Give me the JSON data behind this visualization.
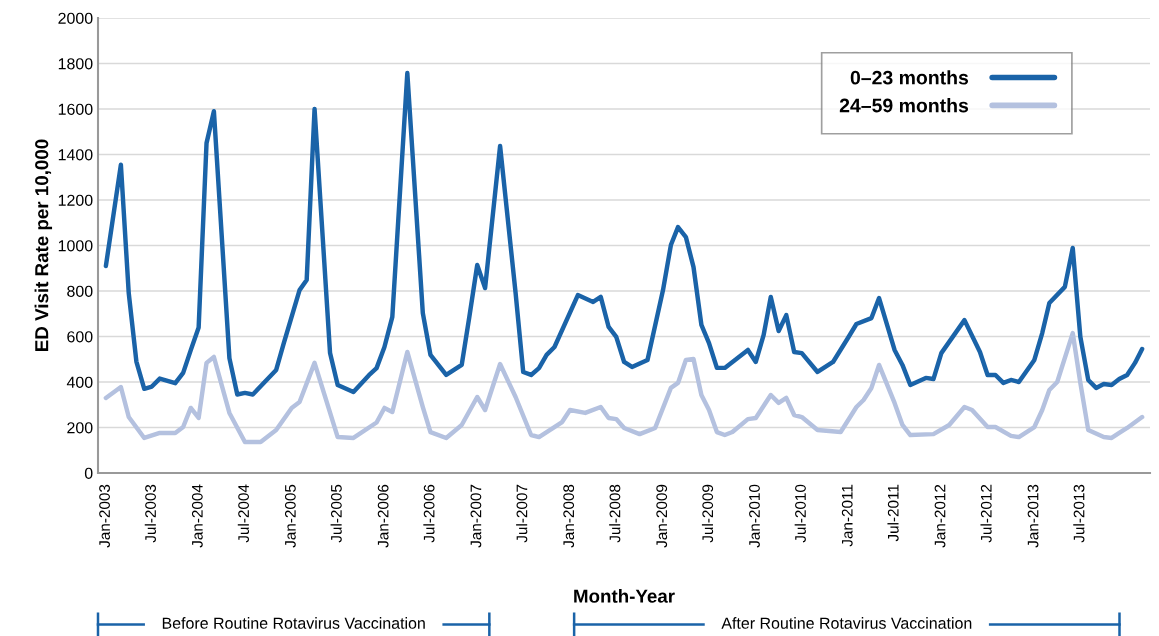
{
  "chart_data": {
    "type": "line",
    "xlabel": "Month-Year",
    "ylabel": "ED Visit Rate per 10,000",
    "ylim": [
      0,
      2000
    ],
    "yticks": [
      0,
      200,
      400,
      600,
      800,
      1000,
      1200,
      1400,
      1600,
      1800,
      2000
    ],
    "xlim": [
      "2002-12",
      "2014-04"
    ],
    "xticks": [
      {
        "value": "2003-01",
        "label": "Jan-2003"
      },
      {
        "value": "2003-07",
        "label": "Jul-2003"
      },
      {
        "value": "2004-01",
        "label": "Jan-2004"
      },
      {
        "value": "2004-07",
        "label": "Jul-2004"
      },
      {
        "value": "2005-01",
        "label": "Jan-2005"
      },
      {
        "value": "2005-07",
        "label": "Jul-2005"
      },
      {
        "value": "2006-01",
        "label": "Jan-2006"
      },
      {
        "value": "2006-07",
        "label": "Jul-2006"
      },
      {
        "value": "2007-01",
        "label": "Jan-2007"
      },
      {
        "value": "2007-07",
        "label": "Jul-2007"
      },
      {
        "value": "2008-01",
        "label": "Jan-2008"
      },
      {
        "value": "2008-07",
        "label": "Jul-2008"
      },
      {
        "value": "2009-01",
        "label": "Jan-2009"
      },
      {
        "value": "2009-07",
        "label": "Jul-2009"
      },
      {
        "value": "2010-01",
        "label": "Jan-2010"
      },
      {
        "value": "2010-07",
        "label": "Jul-2010"
      },
      {
        "value": "2011-01",
        "label": "Jan-2011"
      },
      {
        "value": "2011-07",
        "label": "Jul-2011"
      },
      {
        "value": "2012-01",
        "label": "Jan-2012"
      },
      {
        "value": "2012-07",
        "label": "Jul-2012"
      },
      {
        "value": "2013-01",
        "label": "Jan-2013"
      },
      {
        "value": "2013-07",
        "label": "Jul-2013"
      }
    ],
    "grid": "y",
    "legend": "top right",
    "marker": "none",
    "line_style": "solid",
    "annotations": [
      "Before Routine Rotavirus Vaccination",
      "After Routine Rotavirus Vaccination"
    ],
    "series": [
      {
        "name": "0–23 months",
        "color": "#1a63a8",
        "x": [
          "2003-01",
          "2003-03",
          "2003-04",
          "2003-05",
          "2003-06",
          "2003-07",
          "2003-08",
          "2003-10",
          "2003-11",
          "2003-12",
          "2004-01",
          "2004-02",
          "2004-03",
          "2004-05",
          "2004-06",
          "2004-07",
          "2004-08",
          "2004-11",
          "2004-12",
          "2005-02",
          "2005-03",
          "2005-04",
          "2005-06",
          "2005-07",
          "2005-09",
          "2005-11",
          "2005-12",
          "2006-01",
          "2006-02",
          "2006-04",
          "2006-06",
          "2006-07",
          "2006-09",
          "2006-11",
          "2006-12",
          "2007-01",
          "2007-02",
          "2007-04",
          "2007-06",
          "2007-07",
          "2007-08",
          "2007-09",
          "2007-10",
          "2007-11",
          "2008-02",
          "2008-04",
          "2008-05",
          "2008-06",
          "2008-07",
          "2008-08",
          "2008-09",
          "2008-11",
          "2009-01",
          "2009-02",
          "2009-03",
          "2009-04",
          "2009-05",
          "2009-06",
          "2009-07",
          "2009-08",
          "2009-09",
          "2009-12",
          "2010-01",
          "2010-02",
          "2010-03",
          "2010-04",
          "2010-05",
          "2010-06",
          "2010-07",
          "2010-09",
          "2010-11",
          "2011-01",
          "2011-02",
          "2011-04",
          "2011-05",
          "2011-07",
          "2011-08",
          "2011-09",
          "2011-11",
          "2011-12",
          "2012-01",
          "2012-04",
          "2012-06",
          "2012-07",
          "2012-08",
          "2012-09",
          "2012-10",
          "2012-11",
          "2013-01",
          "2013-02",
          "2013-03",
          "2013-05",
          "2013-06",
          "2013-07",
          "2013-08",
          "2013-09",
          "2013-10",
          "2013-11",
          "2013-12",
          "2014-01",
          "2014-02",
          "2014-03"
        ],
        "values": [
          910,
          1355,
          790,
          490,
          370,
          380,
          415,
          395,
          440,
          540,
          640,
          1450,
          1590,
          505,
          345,
          352,
          345,
          453,
          571,
          804,
          848,
          1600,
          527,
          387,
          356,
          430,
          461,
          554,
          686,
          1758,
          703,
          519,
          431,
          475,
          686,
          914,
          813,
          1437,
          791,
          444,
          431,
          461,
          519,
          554,
          782,
          752,
          774,
          642,
          598,
          488,
          466,
          497,
          804,
          1002,
          1081,
          1037,
          905,
          651,
          571,
          462,
          462,
          541,
          488,
          607,
          774,
          624,
          694,
          532,
          527,
          444,
          488,
          598,
          655,
          681,
          769,
          541,
          475,
          387,
          418,
          413,
          527,
          672,
          532,
          431,
          431,
          396,
          409,
          400,
          497,
          615,
          747,
          818,
          989,
          598,
          409,
          374,
          391,
          387,
          413,
          431,
          484,
          545
        ]
      },
      {
        "name": "24–59 months",
        "color": "#b4c1df",
        "x": [
          "2003-01",
          "2003-03",
          "2003-04",
          "2003-06",
          "2003-08",
          "2003-10",
          "2003-11",
          "2003-12",
          "2004-01",
          "2004-02",
          "2004-03",
          "2004-05",
          "2004-07",
          "2004-09",
          "2004-11",
          "2005-01",
          "2005-02",
          "2005-04",
          "2005-07",
          "2005-09",
          "2005-12",
          "2006-01",
          "2006-02",
          "2006-04",
          "2006-06",
          "2006-07",
          "2006-09",
          "2006-11",
          "2007-01",
          "2007-02",
          "2007-04",
          "2007-06",
          "2007-08",
          "2007-09",
          "2007-12",
          "2008-01",
          "2008-03",
          "2008-05",
          "2008-06",
          "2008-07",
          "2008-08",
          "2008-10",
          "2008-12",
          "2009-02",
          "2009-03",
          "2009-04",
          "2009-05",
          "2009-06",
          "2009-07",
          "2009-08",
          "2009-09",
          "2009-10",
          "2009-12",
          "2010-01",
          "2010-03",
          "2010-04",
          "2010-05",
          "2010-06",
          "2010-07",
          "2010-09",
          "2010-12",
          "2011-02",
          "2011-03",
          "2011-04",
          "2011-05",
          "2011-07",
          "2011-08",
          "2011-09",
          "2011-12",
          "2012-02",
          "2012-04",
          "2012-05",
          "2012-07",
          "2012-08",
          "2012-10",
          "2012-11",
          "2013-01",
          "2013-02",
          "2013-03",
          "2013-04",
          "2013-06",
          "2013-07",
          "2013-08",
          "2013-10",
          "2013-11",
          "2013-12",
          "2014-01",
          "2014-03"
        ],
        "values": [
          330,
          378,
          246,
          154,
          176,
          176,
          202,
          286,
          242,
          484,
          510,
          264,
          136,
          136,
          189,
          286,
          312,
          484,
          158,
          154,
          222,
          286,
          268,
          532,
          290,
          180,
          154,
          211,
          334,
          277,
          479,
          334,
          167,
          158,
          224,
          277,
          264,
          290,
          242,
          237,
          198,
          171,
          198,
          374,
          396,
          497,
          501,
          343,
          277,
          180,
          167,
          180,
          237,
          242,
          343,
          308,
          330,
          255,
          246,
          189,
          180,
          290,
          321,
          374,
          475,
          308,
          211,
          167,
          171,
          211,
          290,
          277,
          202,
          202,
          163,
          158,
          202,
          277,
          365,
          400,
          615,
          396,
          189,
          158,
          154,
          176,
          198,
          246
        ]
      }
    ]
  }
}
